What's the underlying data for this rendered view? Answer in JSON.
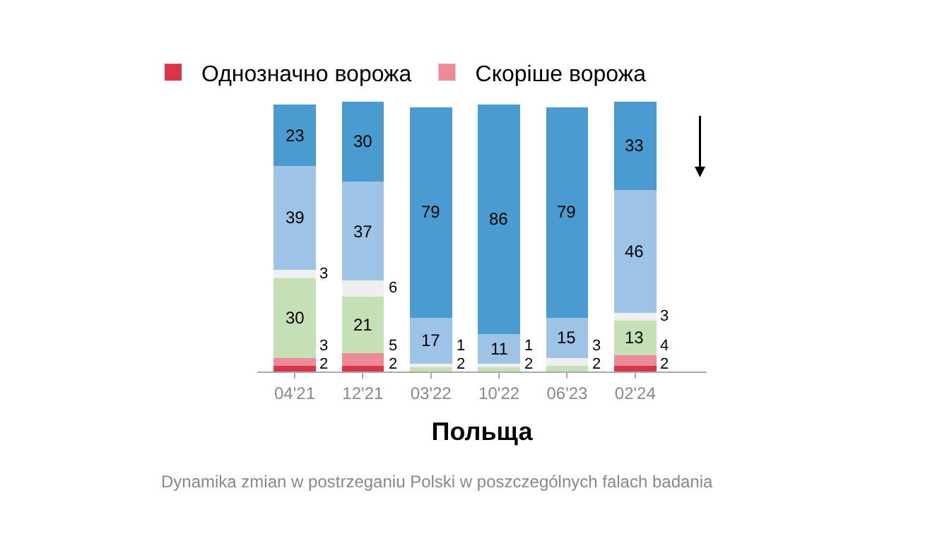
{
  "chart_data": {
    "type": "bar",
    "stacked": true,
    "xlabel": "Польща",
    "categories": [
      "04'21",
      "12'21",
      "03'22",
      "10'22",
      "06'23",
      "02'24"
    ],
    "series": [
      {
        "name": "Однозначно ворожа",
        "color": "#d9344a",
        "values": [
          2,
          2,
          0,
          0,
          0,
          2
        ],
        "value_labels": [
          "2",
          "2",
          null,
          null,
          null,
          "2"
        ]
      },
      {
        "name": "Скоріше ворожа",
        "color": "#ec8a97",
        "values": [
          3,
          5,
          0,
          0,
          0,
          4
        ],
        "value_labels": [
          "3",
          "5",
          null,
          null,
          null,
          "4"
        ]
      },
      {
        "color": "#c5e0b4",
        "values": [
          30,
          21,
          2,
          2,
          2,
          13
        ],
        "value_labels": [
          "30",
          "21",
          "2",
          "2",
          "2",
          "13"
        ]
      },
      {
        "color": "#efefef",
        "values": [
          3,
          6,
          1,
          1,
          3,
          3
        ],
        "value_labels": [
          "3",
          "6",
          "1",
          "1",
          "3",
          "3"
        ]
      },
      {
        "color": "#9dc3e6",
        "values": [
          39,
          37,
          17,
          11,
          15,
          46
        ],
        "value_labels": [
          "39",
          "37",
          "17",
          "11",
          "15",
          "46"
        ]
      },
      {
        "color": "#4a9bcf",
        "values": [
          23,
          30,
          79,
          86,
          79,
          33
        ],
        "value_labels": [
          "23",
          "30",
          "79",
          "86",
          "79",
          "33"
        ]
      }
    ],
    "ylim": [
      0,
      101
    ],
    "tick_labels": "x",
    "legend": "top left",
    "annotations": [
      "Dynamika zmian w postrzeganiu Polski w poszczególnych falach badania"
    ]
  }
}
